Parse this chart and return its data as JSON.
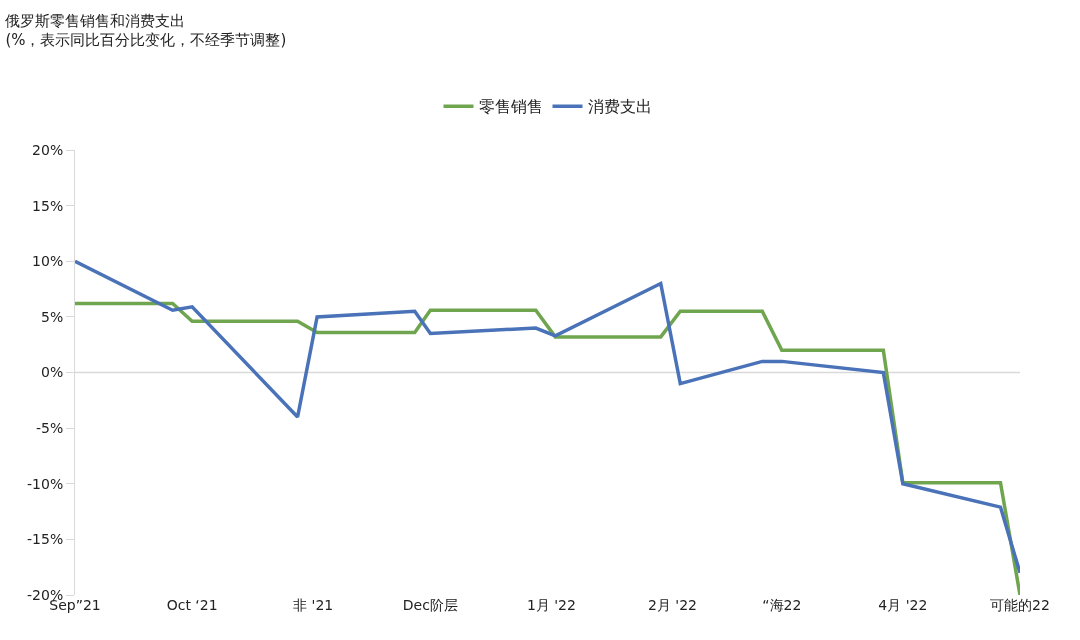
{
  "chart_data": {
    "type": "line",
    "title": "俄罗斯零售销售和消费支出",
    "subtitle": "(%，表示同比百分比变化，不经季节调整)",
    "xlim": [
      "2021-09-01",
      "2022-05-01"
    ],
    "xticks": [
      {
        "value": "2021-09-01",
        "label": "Sep”21"
      },
      {
        "value": "2021-10-01",
        "label": "Oct ‘21"
      },
      {
        "value": "2021-11-01",
        "label": "非 '21"
      },
      {
        "value": "2021-12-01",
        "label": "Dec阶层"
      },
      {
        "value": "2022-01-01",
        "label": "1月 '22"
      },
      {
        "value": "2022-02-01",
        "label": "2月 '22"
      },
      {
        "value": "2022-03-01",
        "label": "“海22"
      },
      {
        "value": "2022-04-01",
        "label": "4月 '22"
      },
      {
        "value": "2022-05-01",
        "label": "可能的22"
      }
    ],
    "ylim": [
      -20,
      20
    ],
    "yticks": [
      {
        "value": 20,
        "label": "20%"
      },
      {
        "value": 15,
        "label": "15%"
      },
      {
        "value": 10,
        "label": "10%"
      },
      {
        "value": 5,
        "label": "5%"
      },
      {
        "value": 0,
        "label": "0%"
      },
      {
        "value": -5,
        "label": "-5%"
      },
      {
        "value": -10,
        "label": "-10%"
      },
      {
        "value": -15,
        "label": "-15%"
      },
      {
        "value": -20,
        "label": "-20%"
      }
    ],
    "grid": false,
    "ref_lines": [
      {
        "axis": "y",
        "value": 0,
        "color": "#d9d9d9"
      }
    ],
    "legend": "top",
    "series": [
      {
        "name": "零售销售",
        "color": "#70a54f",
        "x": [
          "2021-09-01",
          "2021-09-26",
          "2021-10-01",
          "2021-10-28",
          "2021-11-02",
          "2021-11-27",
          "2021-12-01",
          "2021-12-28",
          "2022-01-02",
          "2022-01-29",
          "2022-02-03",
          "2022-02-24",
          "2022-03-01",
          "2022-03-27",
          "2022-04-01",
          "2022-04-26",
          "2022-05-01"
        ],
        "values": [
          6.2,
          6.2,
          4.6,
          4.6,
          3.6,
          3.6,
          5.6,
          5.6,
          3.2,
          3.2,
          5.5,
          5.5,
          2.0,
          2.0,
          -9.9,
          -9.9,
          -20.0
        ]
      },
      {
        "name": "消费支出",
        "color": "#4a72b8",
        "x": [
          "2021-09-01",
          "2021-09-26",
          "2021-10-01",
          "2021-10-28",
          "2021-11-02",
          "2021-11-27",
          "2021-12-01",
          "2021-12-28",
          "2022-01-02",
          "2022-01-29",
          "2022-02-03",
          "2022-02-24",
          "2022-03-01",
          "2022-03-27",
          "2022-04-01",
          "2022-04-26",
          "2022-05-01"
        ],
        "values": [
          10.0,
          5.6,
          5.9,
          -4.0,
          5.0,
          5.5,
          3.5,
          4.0,
          3.3,
          8.0,
          -1.0,
          1.0,
          1.0,
          0.0,
          -10.0,
          -12.1,
          -18.0
        ]
      }
    ]
  }
}
